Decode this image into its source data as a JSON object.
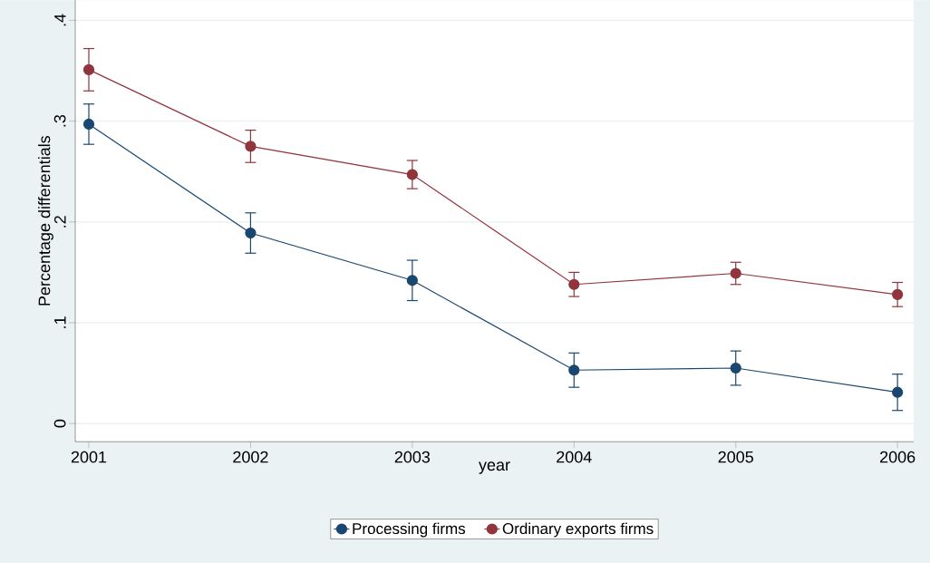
{
  "chart_data": {
    "type": "line",
    "xlabel": "year",
    "ylabel": "Percentage differentials",
    "x": [
      2001,
      2002,
      2003,
      2004,
      2005,
      2006
    ],
    "series": [
      {
        "name": "Processing firms",
        "color": "#1a476f",
        "values": [
          0.297,
          0.189,
          0.142,
          0.053,
          0.055,
          0.031
        ],
        "errors": [
          0.02,
          0.02,
          0.02,
          0.017,
          0.017,
          0.018
        ]
      },
      {
        "name": "Ordinary exports firms",
        "color": "#90353b",
        "values": [
          0.351,
          0.275,
          0.247,
          0.138,
          0.149,
          0.128
        ],
        "errors": [
          0.021,
          0.016,
          0.014,
          0.012,
          0.011,
          0.012
        ]
      }
    ],
    "xlim": [
      2000.916,
      2006.1
    ],
    "ylim": [
      -0.018,
      0.42
    ],
    "xticks": [
      2001,
      2002,
      2003,
      2004,
      2005,
      2006
    ],
    "yticks": [
      {
        "value": 0,
        "label": "0"
      },
      {
        "value": 0.1,
        "label": ".1"
      },
      {
        "value": 0.2,
        "label": ".2"
      },
      {
        "value": 0.3,
        "label": ".3"
      },
      {
        "value": 0.4,
        "label": ".4"
      }
    ],
    "grid": "y",
    "legend": "bottom",
    "marker": "circle",
    "line_style": "solid"
  }
}
